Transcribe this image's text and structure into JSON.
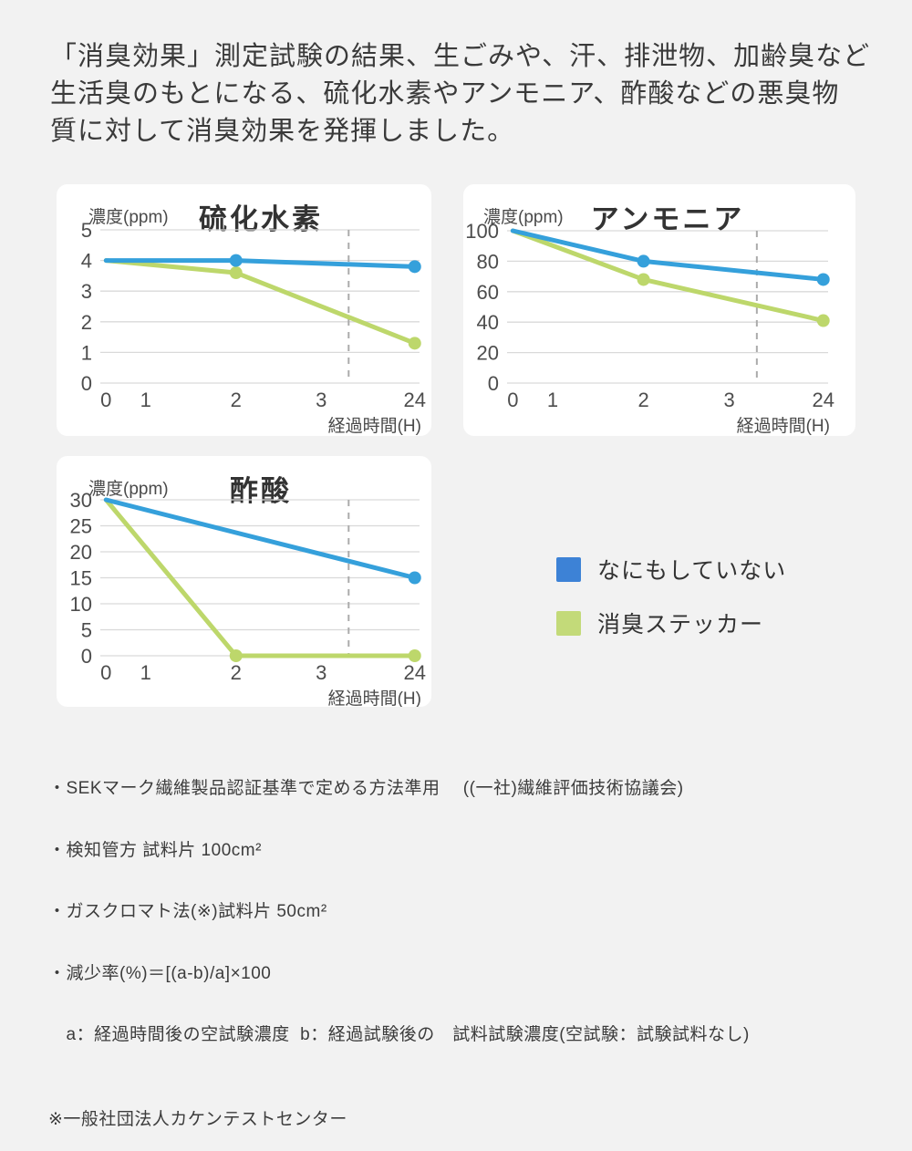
{
  "page": {
    "background": "#f2f2f2"
  },
  "heading": {
    "lines": [
      "「消臭効果」測定試験の結果、生ごみや、汗、排泄物、加齢臭など",
      "生活臭のもとになる、硫化水素やアンモニア、酢酸などの悪臭物",
      "質に対して消臭効果を発揮しました。"
    ]
  },
  "chart_data": [
    {
      "type": "line",
      "title": "硫化水素",
      "y_axis_label": "濃度(ppm)",
      "x_axis_label": "経過時間(H)",
      "x_categories": [
        "0",
        "1",
        "2",
        "3",
        "24"
      ],
      "ylim": [
        0,
        5
      ],
      "yticks": [
        5,
        4,
        3,
        2,
        1,
        0
      ],
      "grid": true,
      "dashed_guide": "vertical dashed line between 3 and 24",
      "series": [
        {
          "name": "なにもしていない",
          "color": "#35a0db",
          "points": [
            [
              0,
              4
            ],
            [
              2,
              4
            ],
            [
              24,
              3.8
            ]
          ],
          "markers": [
            2,
            24
          ]
        },
        {
          "name": "消臭ステッカー",
          "color": "#bdd76b",
          "points": [
            [
              0,
              4
            ],
            [
              2,
              3.6
            ],
            [
              24,
              1.3
            ]
          ],
          "markers": [
            2,
            24
          ]
        }
      ]
    },
    {
      "type": "line",
      "title": "アンモニア",
      "y_axis_label": "濃度(ppm)",
      "x_axis_label": "経過時間(H)",
      "x_categories": [
        "0",
        "1",
        "2",
        "3",
        "24"
      ],
      "ylim": [
        0,
        100
      ],
      "yticks": [
        100,
        80,
        60,
        40,
        20,
        0
      ],
      "grid": true,
      "dashed_guide": "vertical dashed line between 3 and 24",
      "series": [
        {
          "name": "なにもしていない",
          "color": "#35a0db",
          "points": [
            [
              0,
              100
            ],
            [
              2,
              80
            ],
            [
              24,
              68
            ]
          ],
          "markers": [
            2,
            24
          ]
        },
        {
          "name": "消臭ステッカー",
          "color": "#bdd76b",
          "points": [
            [
              0,
              100
            ],
            [
              2,
              68
            ],
            [
              24,
              41
            ]
          ],
          "markers": [
            2,
            24
          ]
        }
      ]
    },
    {
      "type": "line",
      "title": "酢酸",
      "y_axis_label": "濃度(ppm)",
      "x_axis_label": "経過時間(H)",
      "x_categories": [
        "0",
        "1",
        "2",
        "3",
        "24"
      ],
      "ylim": [
        0,
        30
      ],
      "yticks": [
        30,
        25,
        20,
        15,
        10,
        5,
        0
      ],
      "grid": true,
      "dashed_guide": "vertical dashed line between 3 and 24",
      "series": [
        {
          "name": "なにもしていない",
          "color": "#35a0db",
          "points": [
            [
              0,
              30
            ],
            [
              24,
              15
            ]
          ],
          "markers": [
            24
          ]
        },
        {
          "name": "消臭ステッカー",
          "color": "#bdd76b",
          "points": [
            [
              0,
              30
            ],
            [
              2,
              0
            ],
            [
              24,
              0
            ]
          ],
          "markers": [
            2,
            24
          ]
        }
      ]
    }
  ],
  "legend": {
    "items": [
      {
        "label": "なにもしていない",
        "color": "#3d82d6"
      },
      {
        "label": "消臭ステッカー",
        "color": "#c3da79"
      }
    ]
  },
  "notes": {
    "lines": [
      "・SEKマーク繊維製品認証基準で定める方法準用　 ((一社)繊維評価技術協議会)",
      "・検知管方 試料片 100cm²",
      "・ガスクロマト法(※)試料片 50cm²",
      "・減少率(%)＝[(a-b)/a]×100",
      "　a：経過時間後の空試験濃度  b：経過試験後の　試料試験濃度(空試験：試験試料なし)"
    ],
    "certifier": "※一般社団法人カケンテストセンター"
  },
  "colors": {
    "line_blue": "#35a0db",
    "line_green": "#bdd76b",
    "legend_blue": "#3d82d6",
    "legend_green": "#c3da79",
    "gridline": "#d9d9d9",
    "dashed_guide": "#ababab",
    "card_background": "#ffffff",
    "page_background": "#f2f2f2"
  }
}
